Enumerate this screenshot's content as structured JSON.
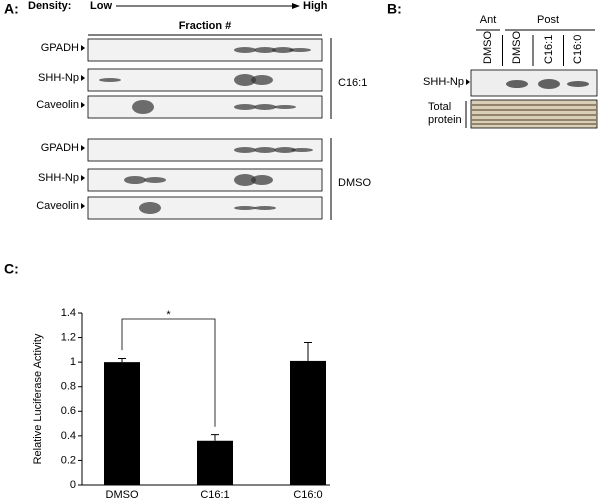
{
  "panel_a": {
    "label": "A:",
    "density": "Density:",
    "low": "Low",
    "high": "High",
    "fraction": "Fraction #",
    "groups": [
      {
        "name": "C16:1",
        "rows": [
          "GPADH",
          "SHH-Np",
          "Caveolin"
        ]
      },
      {
        "name": "DMSO",
        "rows": [
          "GPADH",
          "SHH-Np",
          "Caveolin"
        ]
      }
    ]
  },
  "panel_b": {
    "label": "B:",
    "groups": [
      "Ant",
      "Post"
    ],
    "lanes": [
      "DMSO",
      "DMSO",
      "C16:1",
      "C16:0"
    ],
    "rows": [
      "SHH-Np",
      "Total protein"
    ]
  },
  "chart_data": {
    "type": "bar",
    "panel_label": "C:",
    "y_label": "Relative Luciferase Activity",
    "categories": [
      "DMSO",
      "C16:1",
      "C16:0"
    ],
    "values": [
      1,
      0.36,
      1.01
    ],
    "errors": [
      0.03,
      0.05,
      0.15
    ],
    "color": "#000000",
    "ylim": [
      0,
      1.4
    ],
    "yticks": [
      0,
      0.2,
      0.4,
      0.6,
      0.8,
      1,
      1.2,
      1.4
    ],
    "significance": "*"
  }
}
